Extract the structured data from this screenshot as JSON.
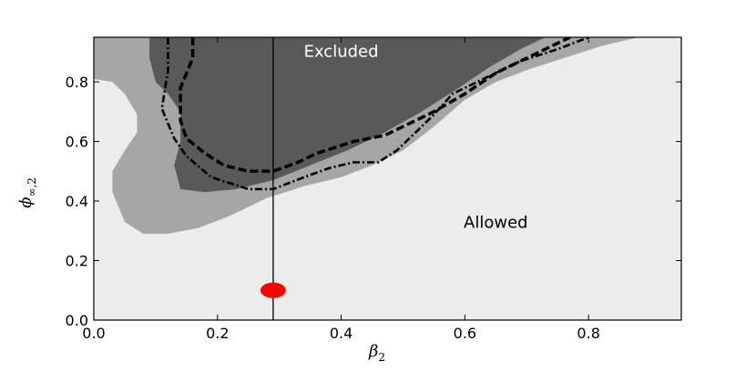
{
  "chart_data": {
    "type": "area",
    "xlabel": "β",
    "xlabel_sub": "2",
    "ylabel": "ϕ",
    "ylabel_sub": "∞,2",
    "xlim": [
      0.0,
      0.95
    ],
    "ylim": [
      0.0,
      0.95
    ],
    "x_ticks": [
      {
        "value": 0.0,
        "label": "0.0"
      },
      {
        "value": 0.2,
        "label": "0.2"
      },
      {
        "value": 0.4,
        "label": "0.4"
      },
      {
        "value": 0.6,
        "label": "0.6"
      },
      {
        "value": 0.8,
        "label": "0.8"
      }
    ],
    "y_ticks": [
      {
        "value": 0.0,
        "label": "0.0"
      },
      {
        "value": 0.2,
        "label": "0.2"
      },
      {
        "value": 0.4,
        "label": "0.4"
      },
      {
        "value": 0.6,
        "label": "0.6"
      },
      {
        "value": 0.8,
        "label": "0.8"
      }
    ],
    "grid": false,
    "background_color": "#ececec",
    "regions": [
      {
        "id": "light-gray-region",
        "color": "#a6a6a6",
        "points": [
          [
            0.0,
            0.95
          ],
          [
            0.0,
            0.81
          ],
          [
            0.03,
            0.8
          ],
          [
            0.05,
            0.76
          ],
          [
            0.07,
            0.69
          ],
          [
            0.07,
            0.63
          ],
          [
            0.05,
            0.57
          ],
          [
            0.03,
            0.5
          ],
          [
            0.03,
            0.43
          ],
          [
            0.05,
            0.33
          ],
          [
            0.08,
            0.29
          ],
          [
            0.12,
            0.29
          ],
          [
            0.17,
            0.31
          ],
          [
            0.22,
            0.35
          ],
          [
            0.28,
            0.41
          ],
          [
            0.34,
            0.45
          ],
          [
            0.4,
            0.48
          ],
          [
            0.45,
            0.52
          ],
          [
            0.5,
            0.57
          ],
          [
            0.55,
            0.65
          ],
          [
            0.6,
            0.74
          ],
          [
            0.65,
            0.8
          ],
          [
            0.7,
            0.84
          ],
          [
            0.76,
            0.88
          ],
          [
            0.82,
            0.92
          ],
          [
            0.88,
            0.95
          ]
        ]
      },
      {
        "id": "dark-gray-region",
        "color": "#595959",
        "points": [
          [
            0.09,
            0.95
          ],
          [
            0.09,
            0.88
          ],
          [
            0.1,
            0.8
          ],
          [
            0.12,
            0.76
          ],
          [
            0.14,
            0.7
          ],
          [
            0.14,
            0.6
          ],
          [
            0.13,
            0.52
          ],
          [
            0.14,
            0.44
          ],
          [
            0.18,
            0.43
          ],
          [
            0.23,
            0.44
          ],
          [
            0.29,
            0.47
          ],
          [
            0.35,
            0.52
          ],
          [
            0.41,
            0.57
          ],
          [
            0.47,
            0.63
          ],
          [
            0.53,
            0.7
          ],
          [
            0.59,
            0.78
          ],
          [
            0.64,
            0.85
          ],
          [
            0.69,
            0.91
          ],
          [
            0.73,
            0.95
          ]
        ]
      }
    ],
    "curves": [
      {
        "id": "dashed-contour",
        "style": "dashed",
        "points": [
          [
            0.16,
            0.95
          ],
          [
            0.16,
            0.88
          ],
          [
            0.14,
            0.78
          ],
          [
            0.14,
            0.67
          ],
          [
            0.15,
            0.61
          ],
          [
            0.18,
            0.56
          ],
          [
            0.21,
            0.52
          ],
          [
            0.25,
            0.5
          ],
          [
            0.29,
            0.5
          ],
          [
            0.33,
            0.53
          ],
          [
            0.36,
            0.56
          ],
          [
            0.42,
            0.6
          ],
          [
            0.47,
            0.62
          ],
          [
            0.5,
            0.65
          ],
          [
            0.55,
            0.7
          ],
          [
            0.6,
            0.76
          ],
          [
            0.65,
            0.83
          ],
          [
            0.7,
            0.88
          ],
          [
            0.75,
            0.93
          ],
          [
            0.77,
            0.95
          ]
        ]
      },
      {
        "id": "dash-dot-contour",
        "style": "dash-dot",
        "points": [
          [
            0.12,
            0.95
          ],
          [
            0.12,
            0.84
          ],
          [
            0.11,
            0.71
          ],
          [
            0.13,
            0.61
          ],
          [
            0.15,
            0.55
          ],
          [
            0.19,
            0.48
          ],
          [
            0.25,
            0.44
          ],
          [
            0.29,
            0.44
          ],
          [
            0.34,
            0.48
          ],
          [
            0.38,
            0.51
          ],
          [
            0.42,
            0.53
          ],
          [
            0.46,
            0.53
          ],
          [
            0.49,
            0.57
          ],
          [
            0.52,
            0.63
          ],
          [
            0.55,
            0.69
          ],
          [
            0.58,
            0.76
          ],
          [
            0.63,
            0.81
          ],
          [
            0.69,
            0.87
          ],
          [
            0.75,
            0.91
          ],
          [
            0.8,
            0.95
          ]
        ]
      }
    ],
    "vertical_line": {
      "x": 0.29
    },
    "marker": {
      "x": 0.29,
      "y": 0.1,
      "color": "#ff0000"
    },
    "annotations": [
      {
        "text": "Excluded",
        "x": 0.4,
        "y": 0.885,
        "color": "#ffffff"
      },
      {
        "text": "Allowed",
        "x": 0.65,
        "y": 0.31,
        "color": "#000000"
      }
    ]
  }
}
